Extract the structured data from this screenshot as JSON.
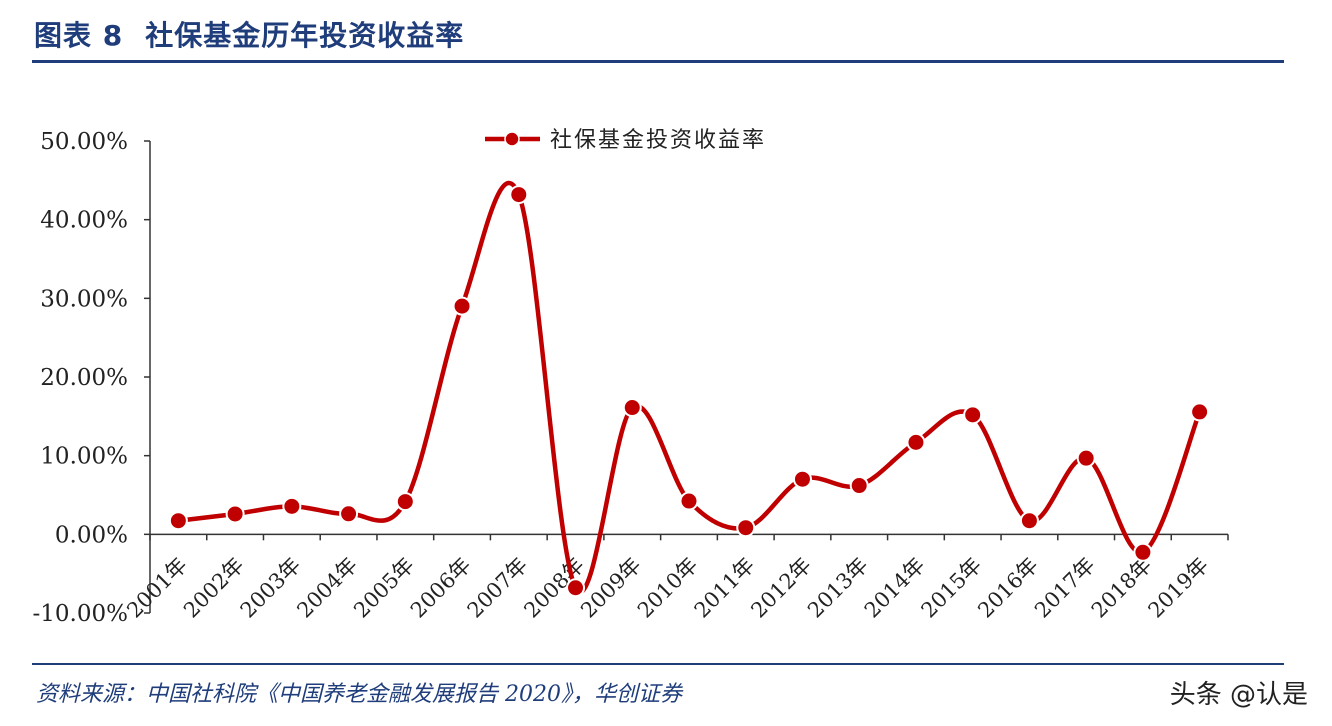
{
  "figure": {
    "label": "图表 8",
    "title": "社保基金历年投资收益率",
    "source": "资料来源：中国社科院《中国养老金融发展报告 2020》，华创证券",
    "watermark": "头条 @认是"
  },
  "colors": {
    "accent": "#1f3d7a",
    "series": "#c00000"
  },
  "chart_data": {
    "type": "line",
    "smooth": true,
    "x": [
      "2001年",
      "2002年",
      "2003年",
      "2004年",
      "2005年",
      "2006年",
      "2007年",
      "2008年",
      "2009年",
      "2010年",
      "2011年",
      "2012年",
      "2013年",
      "2014年",
      "2015年",
      "2016年",
      "2017年",
      "2018年",
      "2019年"
    ],
    "series": [
      {
        "name": "社保基金投资收益率",
        "values": [
          1.73,
          2.59,
          3.56,
          2.61,
          4.16,
          29.01,
          43.19,
          -6.79,
          16.12,
          4.23,
          0.84,
          7.01,
          6.2,
          11.69,
          15.19,
          1.73,
          9.68,
          -2.28,
          15.56
        ]
      }
    ],
    "ylim": [
      -10,
      50
    ],
    "yticks": [
      "-10.00%",
      "0.00%",
      "10.00%",
      "20.00%",
      "30.00%",
      "40.00%",
      "50.00%"
    ],
    "xlabel": "",
    "ylabel": "",
    "legend": "top-center",
    "grid": false
  }
}
